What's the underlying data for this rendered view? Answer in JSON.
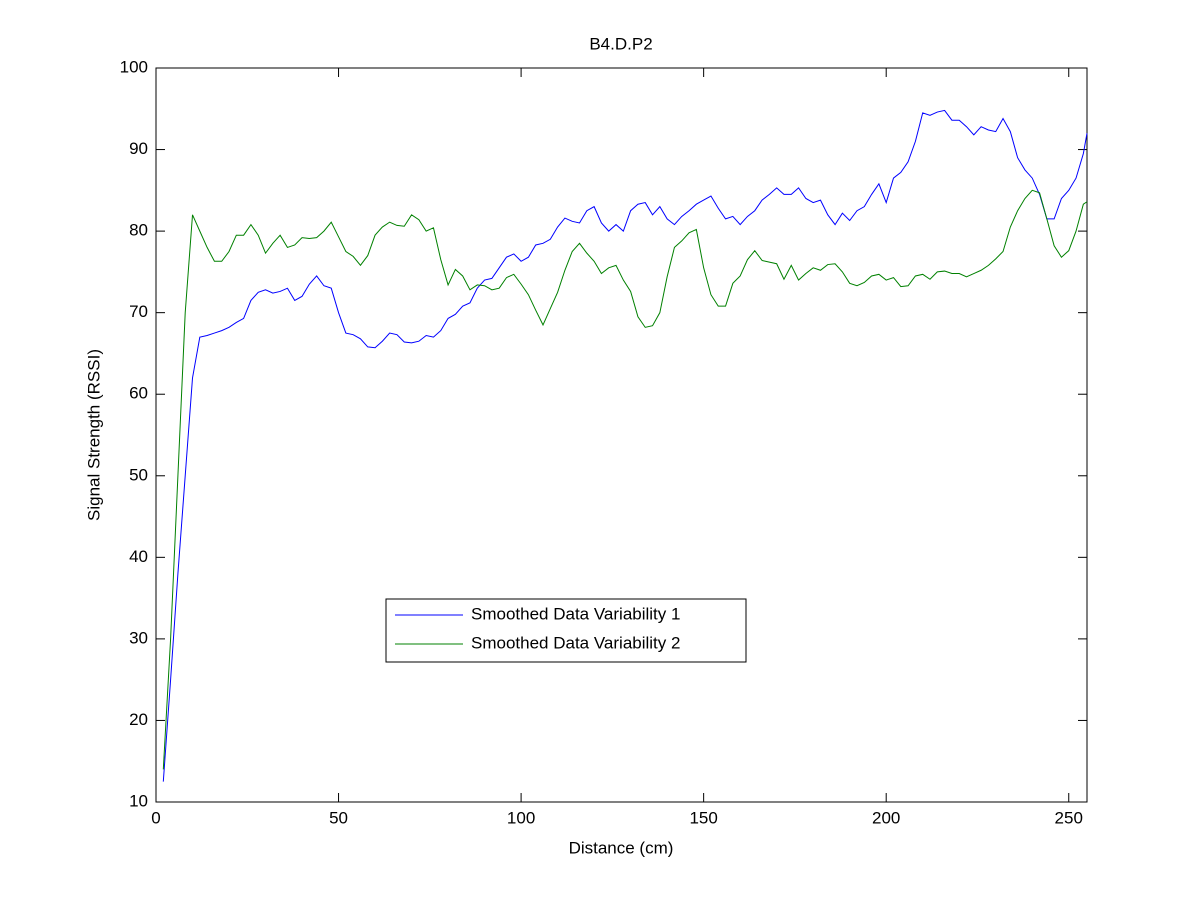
{
  "chart_data": {
    "type": "line",
    "title": "B4.D.P2",
    "x_label": "Distance (cm)",
    "y_label": "Signal Strength (RSSI)",
    "x": [
      2,
      4,
      6,
      8,
      10,
      12,
      14,
      16,
      18,
      20,
      22,
      24,
      26,
      28,
      30,
      32,
      34,
      36,
      38,
      40,
      42,
      44,
      46,
      48,
      50,
      52,
      54,
      56,
      58,
      60,
      62,
      64,
      66,
      68,
      70,
      72,
      74,
      76,
      78,
      80,
      82,
      84,
      86,
      88,
      90,
      92,
      94,
      96,
      98,
      100,
      102,
      104,
      106,
      108,
      110,
      112,
      114,
      116,
      118,
      120,
      122,
      124,
      126,
      128,
      130,
      132,
      134,
      136,
      138,
      140,
      142,
      144,
      146,
      148,
      150,
      152,
      154,
      156,
      158,
      160,
      162,
      164,
      166,
      168,
      170,
      172,
      174,
      176,
      178,
      180,
      182,
      184,
      186,
      188,
      190,
      192,
      194,
      196,
      198,
      200,
      202,
      204,
      206,
      208,
      210,
      212,
      214,
      216,
      218,
      220,
      222,
      224,
      226,
      228,
      230,
      232,
      234,
      236,
      238,
      240,
      242,
      244,
      246,
      248,
      250,
      252,
      254,
      255
    ],
    "series": [
      {
        "name": "Smoothed Data Variability 1",
        "color": "#0000ff",
        "values": [
          12.5,
          25,
          38,
          50,
          62,
          67,
          67.2,
          67.5,
          67.8,
          68.2,
          68.8,
          69.3,
          71.5,
          72.5,
          72.8,
          72.4,
          72.6,
          73,
          71.5,
          72,
          73.5,
          74.5,
          73.3,
          73,
          70,
          67.5,
          67.3,
          66.8,
          65.8,
          65.7,
          66.5,
          67.5,
          67.3,
          66.4,
          66.3,
          66.5,
          67.2,
          67,
          67.8,
          69.3,
          69.8,
          70.8,
          71.2,
          73,
          74,
          74.2,
          75.5,
          76.8,
          77.2,
          76.3,
          76.8,
          78.3,
          78.5,
          79,
          80.5,
          81.6,
          81.2,
          81,
          82.5,
          83,
          81,
          80,
          80.8,
          80,
          82.5,
          83.3,
          83.5,
          82,
          83,
          81.5,
          80.8,
          81.8,
          82.5,
          83.3,
          83.8,
          84.3,
          82.8,
          81.5,
          81.8,
          80.8,
          81.8,
          82.5,
          83.8,
          84.5,
          85.3,
          84.5,
          84.5,
          85.3,
          84,
          83.5,
          83.8,
          82,
          80.8,
          82.2,
          81.3,
          82.5,
          83,
          84.5,
          85.8,
          83.5,
          86.5,
          87.2,
          88.5,
          91,
          94.5,
          94.2,
          94.6,
          94.8,
          93.6,
          93.6,
          92.8,
          91.8,
          92.8,
          92.4,
          92.2,
          93.8,
          92.2,
          89,
          87.5,
          86.5,
          84.5,
          81.5,
          81.5,
          84,
          85,
          86.5,
          89.5,
          92
        ]
      },
      {
        "name": "Smoothed Data Variability 2",
        "color": "#008000",
        "values": [
          14,
          30,
          50,
          70,
          82,
          80,
          78,
          76.3,
          76.3,
          77.5,
          79.5,
          79.5,
          80.8,
          79.5,
          77.3,
          78.5,
          79.5,
          78,
          78.3,
          79.2,
          79.1,
          79.2,
          80,
          81.1,
          79.3,
          77.5,
          76.9,
          75.8,
          77,
          79.5,
          80.5,
          81.1,
          80.7,
          80.6,
          82,
          81.4,
          80,
          80.4,
          76.5,
          73.4,
          75.3,
          74.5,
          72.8,
          73.4,
          73.3,
          72.8,
          73,
          74.3,
          74.7,
          73.5,
          72.2,
          70.3,
          68.5,
          70.5,
          72.5,
          75.2,
          77.5,
          78.5,
          77.3,
          76.3,
          74.8,
          75.5,
          75.8,
          74,
          72.6,
          69.5,
          68.2,
          68.4,
          70,
          74.4,
          78,
          78.8,
          79.8,
          80.2,
          75.5,
          72.2,
          70.8,
          70.8,
          73.6,
          74.5,
          76.5,
          77.6,
          76.4,
          76.2,
          76,
          74.1,
          75.8,
          74,
          74.8,
          75.5,
          75.2,
          75.9,
          76,
          75,
          73.6,
          73.3,
          73.7,
          74.5,
          74.7,
          74,
          74.3,
          73.2,
          73.3,
          74.5,
          74.7,
          74.1,
          75,
          75.1,
          74.8,
          74.8,
          74.4,
          74.8,
          75.2,
          75.8,
          76.6,
          77.5,
          80.5,
          82.5,
          84,
          85,
          84.7,
          81.5,
          78.2,
          76.8,
          77.6,
          80,
          83.3,
          83.6
        ]
      }
    ],
    "xlim": [
      0,
      255
    ],
    "xticks": [
      0,
      50,
      100,
      150,
      200,
      250
    ],
    "ylim": [
      10,
      100
    ],
    "yticks": [
      10,
      20,
      30,
      40,
      50,
      60,
      70,
      80,
      90,
      100
    ],
    "grid": false,
    "legend_loc": "lower-center"
  }
}
